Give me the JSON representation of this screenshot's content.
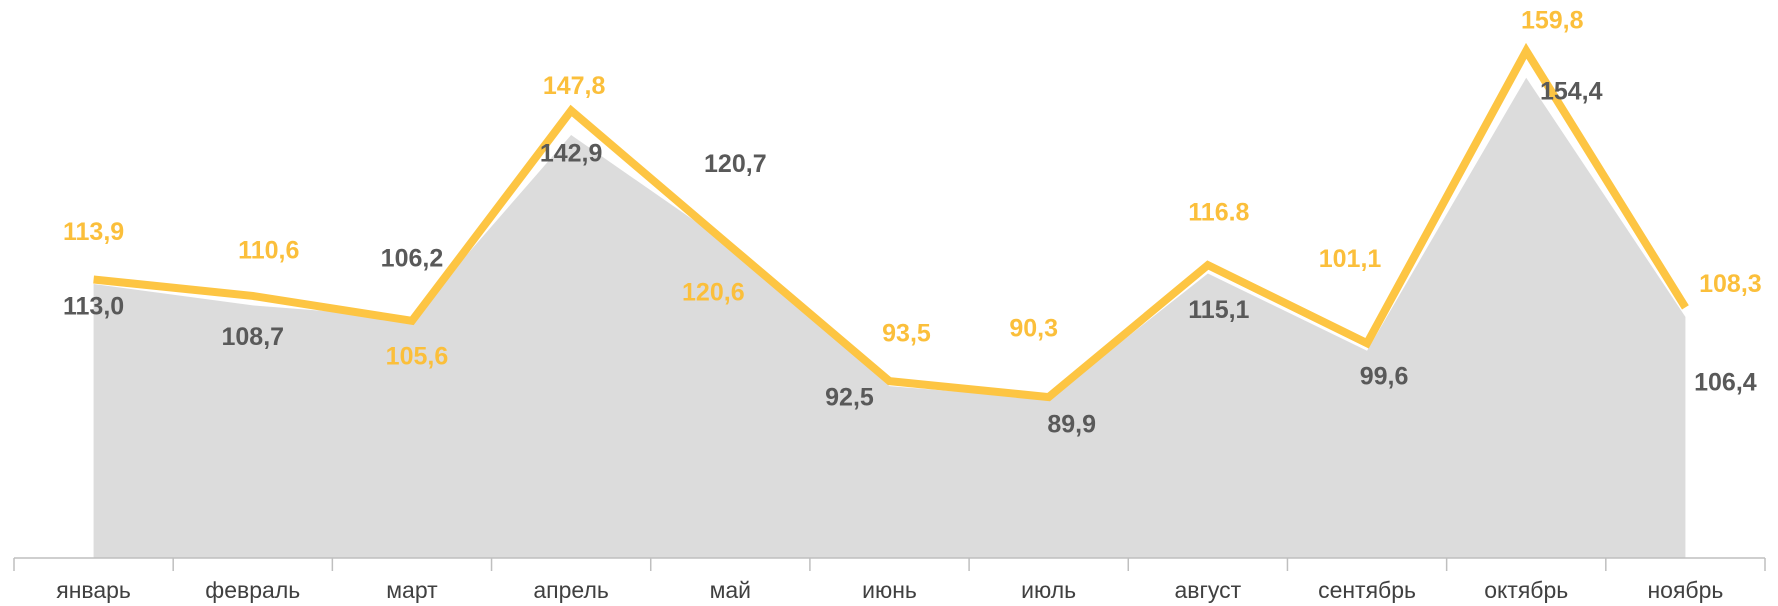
{
  "chart_data": {
    "type": "line",
    "categories": [
      "январь",
      "февраль",
      "март",
      "апрель",
      "май",
      "июнь",
      "июль",
      "август",
      "сентябрь",
      "октябрь",
      "ноябрь"
    ],
    "series": [
      {
        "kind": "area",
        "color": "#dcdcdc",
        "label_color": "#595959",
        "values": [
          113.0,
          108.7,
          106.2,
          142.9,
          120.7,
          92.5,
          89.9,
          115.1,
          99.6,
          154.4,
          106.4
        ],
        "value_labels": [
          "113,0",
          "108,7",
          "106,2",
          "142,9",
          "120,7",
          "92,5",
          "89,9",
          "115,1",
          "99,6",
          "154,4",
          "106,4"
        ]
      },
      {
        "kind": "line",
        "color": "#fdc543",
        "label_color": "#fbbf3b",
        "values": [
          113.9,
          110.6,
          105.6,
          147.8,
          120.6,
          93.5,
          90.3,
          116.8,
          101.1,
          159.8,
          108.3
        ],
        "value_labels": [
          "113,9",
          "110,6",
          "105,6",
          "147,8",
          "120,6",
          "93,5",
          "90,3",
          "116.8",
          "101,1",
          "159,8",
          "108,3"
        ]
      }
    ],
    "ylim": [
      58,
      170
    ]
  }
}
